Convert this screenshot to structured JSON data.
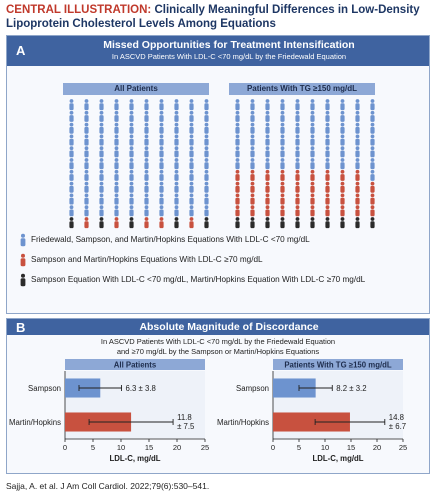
{
  "header": {
    "prefix": "CENTRAL ILLUSTRATION:",
    "title_line1": "Clinically Meaningful Differences in Low-Density",
    "title_line2": "Lipoprotein Cholesterol Levels Among Equations"
  },
  "panel_a": {
    "letter": "A",
    "title": "Missed Opportunities for Treatment Intensification",
    "subtitle": "In ASCVD Patients With LDL-C <70 mg/dL by the Friedewald Equation",
    "groups": [
      {
        "label": "All Patients",
        "columns": [
          {
            "blue": 10,
            "red": 0,
            "black": 1
          },
          {
            "blue": 10,
            "red": 1,
            "black": 0
          },
          {
            "blue": 10,
            "red": 0,
            "black": 1
          },
          {
            "blue": 10,
            "red": 1,
            "black": 0
          },
          {
            "blue": 10,
            "red": 0,
            "black": 1
          },
          {
            "blue": 10,
            "red": 1,
            "black": 0
          },
          {
            "blue": 10,
            "red": 1,
            "black": 0
          },
          {
            "blue": 10,
            "red": 0,
            "black": 1
          },
          {
            "blue": 10,
            "red": 1,
            "black": 0
          },
          {
            "blue": 10,
            "red": 0,
            "black": 1
          }
        ]
      },
      {
        "label": "Patients With TG ≥150 mg/dL",
        "columns": [
          {
            "blue": 6,
            "red": 4,
            "black": 1
          },
          {
            "blue": 6,
            "red": 4,
            "black": 1
          },
          {
            "blue": 6,
            "red": 4,
            "black": 1
          },
          {
            "blue": 6,
            "red": 4,
            "black": 1
          },
          {
            "blue": 6,
            "red": 4,
            "black": 1
          },
          {
            "blue": 6,
            "red": 4,
            "black": 1
          },
          {
            "blue": 6,
            "red": 4,
            "black": 1
          },
          {
            "blue": 6,
            "red": 4,
            "black": 1
          },
          {
            "blue": 6,
            "red": 4,
            "black": 1
          },
          {
            "blue": 7,
            "red": 3,
            "black": 1
          }
        ]
      }
    ],
    "legend": [
      {
        "text": "Friedewald, Sampson, and Martin/Hopkins Equations With LDL-C <70 mg/dL",
        "color": "#6d93cf"
      },
      {
        "text": "Sampson and Martin/Hopkins Equations With LDL-C ≥70 mg/dL",
        "color": "#c8513f"
      },
      {
        "text": "Sampson Equation With LDL-C <70 mg/dL, Martin/Hopkins Equation With LDL-C ≥70 mg/dL",
        "color": "#2b2b2b"
      }
    ]
  },
  "panel_b": {
    "letter": "B",
    "title": "Absolute Magnitude of Discordance",
    "subtitle_line1": "In ASCVD Patients With LDL-C <70 mg/dL by the Friedewald Equation",
    "subtitle_line2": "and ≥70 mg/dL by the Sampson or Martin/Hopkins Equations"
  },
  "chart_data": [
    {
      "type": "bar",
      "orientation": "horizontal",
      "title": "All Patients",
      "categories": [
        "Sampson",
        "Martin/Hopkins"
      ],
      "values": [
        6.3,
        11.8
      ],
      "errors": [
        3.8,
        7.5
      ],
      "value_labels": [
        [
          "6.3 ± 3.8"
        ],
        [
          "11.8",
          "± 7.5"
        ]
      ],
      "bar_colors": [
        "#6d93cf",
        "#c8513f"
      ],
      "xlabel": "LDL-C, mg/dL",
      "xlim": [
        0,
        25
      ],
      "xticks": [
        "0",
        "5",
        "10",
        "15",
        "20",
        "25"
      ]
    },
    {
      "type": "bar",
      "orientation": "horizontal",
      "title": "Patients With TG ≥150 mg/dL",
      "categories": [
        "Sampson",
        "Martin/Hopkins"
      ],
      "values": [
        8.2,
        14.8
      ],
      "errors": [
        3.2,
        6.7
      ],
      "value_labels": [
        [
          "8.2 ± 3.2"
        ],
        [
          "14.8",
          "± 6.7"
        ]
      ],
      "bar_colors": [
        "#6d93cf",
        "#c8513f"
      ],
      "xlabel": "LDL-C, mg/dL",
      "xlim": [
        0,
        25
      ],
      "xticks": [
        "0",
        "5",
        "10",
        "15",
        "20",
        "25"
      ]
    }
  ],
  "citation": "Sajja, A. et al. J Am Coll Cardiol. 2022;79(6):530–541."
}
